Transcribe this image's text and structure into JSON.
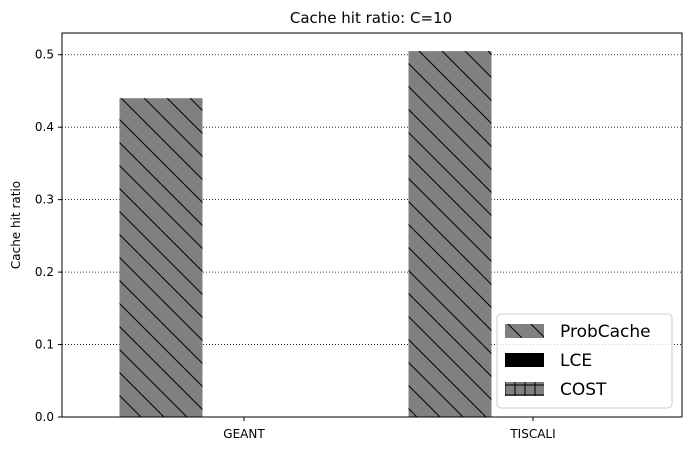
{
  "chart_data": {
    "type": "bar",
    "title": "Cache hit ratio: C=10",
    "xlabel": "",
    "ylabel": "Cache hit ratio",
    "categories": [
      "GEANT",
      "TISCALI"
    ],
    "series": [
      {
        "name": "ProbCache",
        "values": [
          0.44,
          0.505
        ],
        "color": "#808080",
        "hatch": "backslash"
      },
      {
        "name": "LCE",
        "values": [
          0,
          0
        ],
        "color": "#000000",
        "hatch": "none"
      },
      {
        "name": "COST",
        "values": [
          0,
          0
        ],
        "color": "#808080",
        "hatch": "plus"
      }
    ],
    "ylim": [
      0,
      0.53
    ],
    "yticks": [
      0.0,
      0.1,
      0.2,
      0.3,
      0.4,
      0.5
    ],
    "ytick_labels": [
      "0.0",
      "0.1",
      "0.2",
      "0.3",
      "0.4",
      "0.5"
    ],
    "grid": "y-dotted",
    "legend_position": "lower-right"
  }
}
